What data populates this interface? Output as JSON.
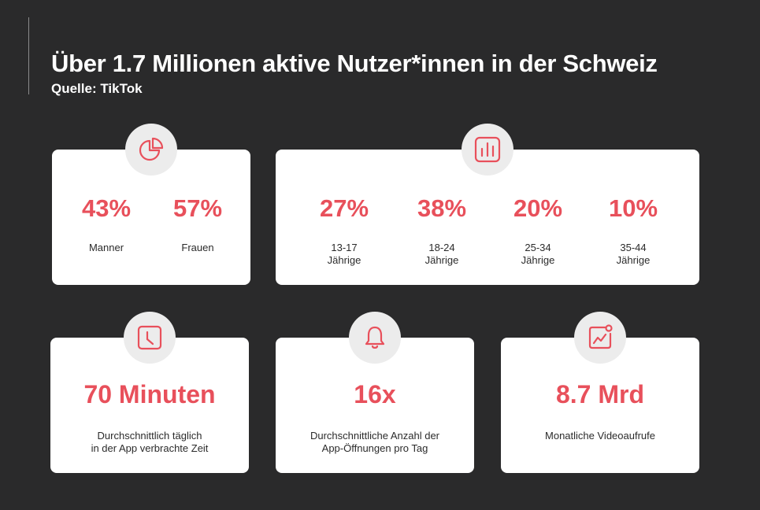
{
  "header": {
    "title": "Über 1.7 Millionen aktive Nutzer*innen in der Schweiz",
    "source": "Quelle: TikTok"
  },
  "colors": {
    "accent": "#e8505b",
    "background": "#2a2a2b",
    "card": "#ffffff",
    "badge": "#ececec"
  },
  "gender": {
    "icon": "pie-chart-icon",
    "stats": [
      {
        "value": "43%",
        "label": "Manner"
      },
      {
        "value": "57%",
        "label": "Frauen"
      }
    ]
  },
  "age": {
    "icon": "bar-chart-icon",
    "stats": [
      {
        "value": "27%",
        "label1": "13-17",
        "label2": "Jährige"
      },
      {
        "value": "38%",
        "label1": "18-24",
        "label2": "Jährige"
      },
      {
        "value": "20%",
        "label1": "25-34",
        "label2": "Jährige"
      },
      {
        "value": "10%",
        "label1": "35-44",
        "label2": "Jährige"
      }
    ]
  },
  "time": {
    "icon": "clock-icon",
    "value": "70 Minuten",
    "line1": "Durchschnittlich täglich",
    "line2": "in der App verbrachte Zeit"
  },
  "opens": {
    "icon": "bell-icon",
    "value": "16x",
    "line1": "Durchschnittliche Anzahl der",
    "line2": "App-Öffnungen pro Tag"
  },
  "views": {
    "icon": "trend-chart-icon",
    "value": "8.7 Mrd",
    "line1": "Monatliche Videoaufrufe"
  }
}
